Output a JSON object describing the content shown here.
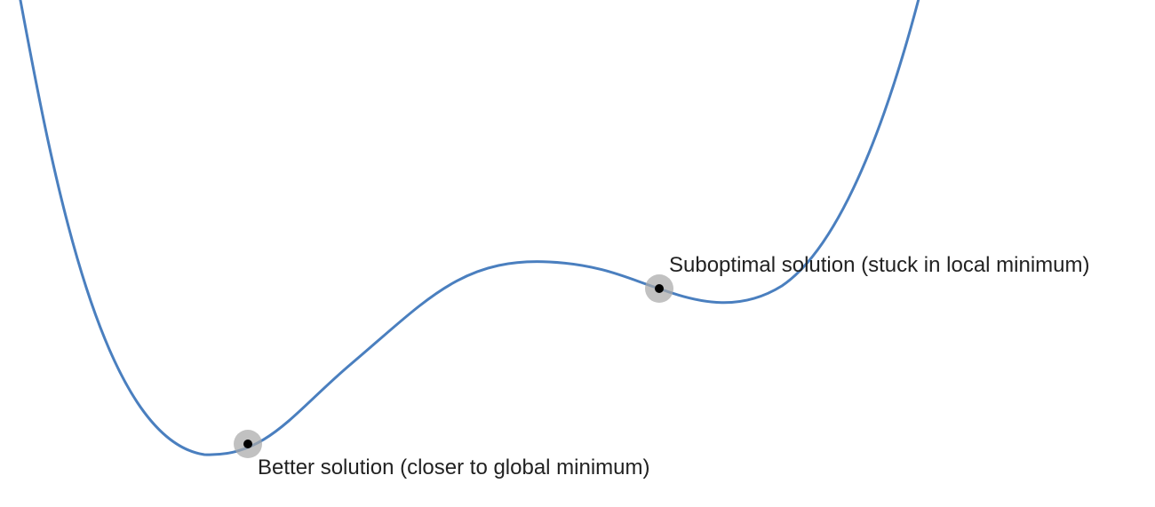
{
  "colors": {
    "curve": "#4a7fbf",
    "marker_halo": "#a9a9a9",
    "marker_dot": "#000000",
    "label_text": "#222222"
  },
  "annotations": {
    "local_minimum_label": "Suboptimal solution (stuck in local minimum)",
    "global_minimum_label": "Better solution (closer to global minimum)"
  }
}
